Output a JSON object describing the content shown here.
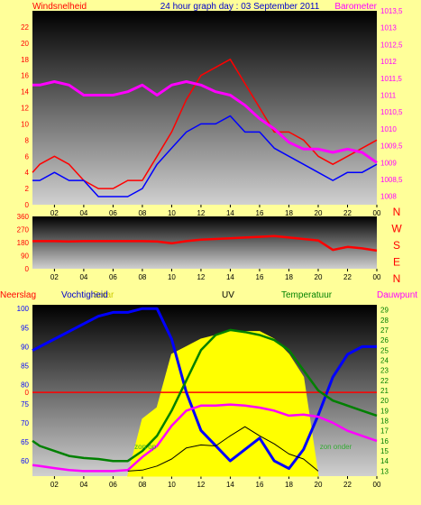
{
  "colors": {
    "page_bg": "#ffff99",
    "wind": "#ff0000",
    "gust": "#0000ff",
    "barometer": "#ff00ff",
    "direction": "#ff0000",
    "humidity": "#0000ff",
    "temperature": "#008000",
    "dewpoint": "#ff00ff",
    "solar": "#ffff00",
    "uv": "#000000",
    "rain": "#ff0000",
    "plot_top": "#000000",
    "plot_bottom": "#cccccc"
  },
  "header": {
    "left_title": "Windsnelheid",
    "center_title": "24 hour graph day : 03 September 2011",
    "right_title": "Barometer"
  },
  "chart_data": [
    {
      "id": "wind_barometer",
      "type": "line",
      "x_labels": [
        "02",
        "04",
        "06",
        "08",
        "10",
        "12",
        "14",
        "16",
        "18",
        "20",
        "22",
        "00"
      ],
      "left_axis": {
        "ticks": [
          "0",
          "2",
          "4",
          "6",
          "8",
          "10",
          "12",
          "14",
          "16",
          "18",
          "20",
          "22"
        ],
        "ylim": [
          0,
          24
        ]
      },
      "right_axis": {
        "ticks": [
          "1008",
          "1008,5",
          "1009",
          "1009,5",
          "1010",
          "1010,5",
          "1011",
          "1011,5",
          "1012",
          "1012,5",
          "1013",
          "1013,5"
        ],
        "ylim": [
          1007.75,
          1013.5
        ]
      },
      "x_range": [
        0.5,
        24
      ],
      "series": [
        {
          "key": "wind",
          "axis": "left",
          "x": [
            0.5,
            1,
            2,
            3,
            4,
            5,
            6,
            7,
            8,
            9,
            10,
            11,
            12,
            13,
            14,
            15,
            16,
            17,
            18,
            19,
            20,
            21,
            22,
            23,
            24
          ],
          "y": [
            4,
            5,
            6,
            5,
            3,
            2,
            2,
            3,
            3,
            6,
            9,
            13,
            16,
            17,
            18,
            15,
            12,
            9,
            9,
            8,
            6,
            5,
            6,
            7,
            8
          ]
        },
        {
          "key": "gust",
          "axis": "left",
          "x": [
            0.5,
            1,
            2,
            3,
            4,
            5,
            6,
            7,
            8,
            9,
            10,
            11,
            12,
            13,
            14,
            15,
            16,
            17,
            18,
            19,
            20,
            21,
            22,
            23,
            24
          ],
          "y": [
            3,
            3,
            4,
            3,
            3,
            1,
            1,
            1,
            2,
            5,
            7,
            9,
            10,
            10,
            11,
            9,
            9,
            7,
            6,
            5,
            4,
            3,
            4,
            4,
            5
          ]
        },
        {
          "key": "barometer",
          "axis": "right",
          "x": [
            0.5,
            1,
            2,
            3,
            4,
            5,
            6,
            7,
            8,
            9,
            10,
            11,
            12,
            13,
            14,
            15,
            16,
            17,
            18,
            19,
            20,
            21,
            22,
            23,
            24
          ],
          "y": [
            1011.3,
            1011.3,
            1011.4,
            1011.3,
            1011.0,
            1011.0,
            1011.0,
            1011.1,
            1011.3,
            1011.0,
            1011.3,
            1011.4,
            1011.3,
            1011.1,
            1011.0,
            1010.7,
            1010.3,
            1010.0,
            1009.6,
            1009.4,
            1009.4,
            1009.3,
            1009.4,
            1009.3,
            1009.0
          ]
        }
      ]
    },
    {
      "id": "wind_direction",
      "type": "line",
      "x_labels": [
        "02",
        "04",
        "06",
        "08",
        "10",
        "12",
        "14",
        "16",
        "18",
        "20",
        "22",
        "00"
      ],
      "left_axis": {
        "ticks": [
          "0",
          "90",
          "180",
          "270",
          "360"
        ],
        "ylim": [
          0,
          360
        ]
      },
      "right_labels": [
        "N",
        "W",
        "S",
        "E",
        "N"
      ],
      "x_range": [
        0.5,
        24
      ],
      "series": [
        {
          "key": "direction",
          "x": [
            0.5,
            1,
            2,
            3,
            4,
            5,
            6,
            7,
            8,
            9,
            10,
            11,
            12,
            13,
            14,
            15,
            16,
            17,
            18,
            19,
            20,
            21,
            22,
            23,
            24
          ],
          "y": [
            190,
            190,
            190,
            188,
            190,
            190,
            190,
            190,
            190,
            188,
            175,
            190,
            200,
            205,
            210,
            215,
            220,
            225,
            215,
            205,
            195,
            130,
            150,
            140,
            125
          ]
        }
      ]
    },
    {
      "id": "multi",
      "type": "line",
      "x_labels": [
        "02",
        "04",
        "06",
        "08",
        "10",
        "12",
        "14",
        "16",
        "18",
        "20",
        "22",
        "00"
      ],
      "left_axis": {
        "ticks": [
          "60",
          "65",
          "70",
          "75",
          "80",
          "85",
          "90",
          "95",
          "100"
        ],
        "ylim": [
          56,
          101
        ]
      },
      "right_axis": {
        "ticks": [
          "13",
          "14",
          "15",
          "16",
          "17",
          "18",
          "19",
          "20",
          "21",
          "22",
          "23",
          "24",
          "25",
          "26",
          "27",
          "28",
          "29"
        ],
        "ylim": [
          12.5,
          29.5
        ]
      },
      "rain_zero_label": "0",
      "rain_zero_value": 78,
      "x_range": [
        0.5,
        24
      ],
      "series": [
        {
          "key": "humidity",
          "axis": "left",
          "x": [
            0.5,
            1,
            2,
            3,
            4,
            5,
            6,
            7,
            8,
            9,
            10,
            11,
            12,
            13,
            14,
            15,
            16,
            17,
            18,
            19,
            20,
            21,
            22,
            23,
            24
          ],
          "y": [
            89,
            90,
            92,
            94,
            96,
            98,
            99,
            99,
            100,
            100,
            92,
            78,
            68,
            64,
            60,
            63,
            66,
            60,
            58,
            63,
            72,
            82,
            88,
            90,
            90
          ]
        },
        {
          "key": "temperature",
          "axis": "right",
          "x": [
            0.5,
            1,
            2,
            3,
            4,
            5,
            6,
            7,
            8,
            9,
            10,
            11,
            12,
            13,
            14,
            15,
            16,
            17,
            18,
            19,
            20,
            21,
            22,
            23,
            24
          ],
          "y": [
            16,
            15.5,
            15,
            14.5,
            14.3,
            14.2,
            14,
            14,
            15,
            16.5,
            19,
            22,
            25,
            26.5,
            27,
            26.8,
            26.5,
            26,
            25,
            23,
            21,
            20,
            19.5,
            19,
            18.5
          ]
        },
        {
          "key": "dewpoint",
          "axis": "right",
          "x": [
            0.5,
            1,
            2,
            3,
            4,
            5,
            6,
            7,
            8,
            9,
            10,
            11,
            12,
            13,
            14,
            15,
            16,
            17,
            18,
            19,
            20,
            21,
            22,
            23,
            24
          ],
          "y": [
            13.6,
            13.5,
            13.3,
            13.1,
            13.0,
            13.0,
            13.0,
            13.1,
            14.4,
            15.5,
            17.5,
            19.0,
            19.5,
            19.5,
            19.6,
            19.5,
            19.3,
            19.0,
            18.5,
            18.6,
            18.4,
            17.8,
            17.0,
            16.5,
            16.0
          ]
        },
        {
          "key": "solar",
          "axis": "left",
          "kind": "area",
          "x": [
            7,
            8,
            9,
            10,
            11,
            12,
            13,
            14,
            15,
            16,
            17,
            18,
            19,
            20
          ],
          "y": [
            56,
            71,
            74,
            88,
            90,
            92,
            93,
            94,
            94,
            94,
            92,
            88,
            82,
            56
          ]
        },
        {
          "key": "uv",
          "axis": "right",
          "x": [
            7,
            8,
            9,
            10,
            11,
            12,
            13,
            14,
            15,
            16,
            17,
            18,
            19,
            20
          ],
          "y": [
            13,
            13.1,
            13.5,
            14.2,
            15.3,
            15.6,
            15.5,
            16.5,
            17.4,
            16.5,
            15.7,
            14.7,
            14.2,
            13
          ]
        }
      ],
      "annotations": [
        {
          "text": "zon op",
          "x": 8.2
        },
        {
          "text": "zon onder",
          "x": 21.2
        }
      ]
    }
  ],
  "legend": {
    "rain": "Neerslag",
    "humidity": "Vochtigheid",
    "solar": "Solar",
    "uv": "UV",
    "temperature": "Temperatuur",
    "dewpoint": "Dauwpunt"
  }
}
